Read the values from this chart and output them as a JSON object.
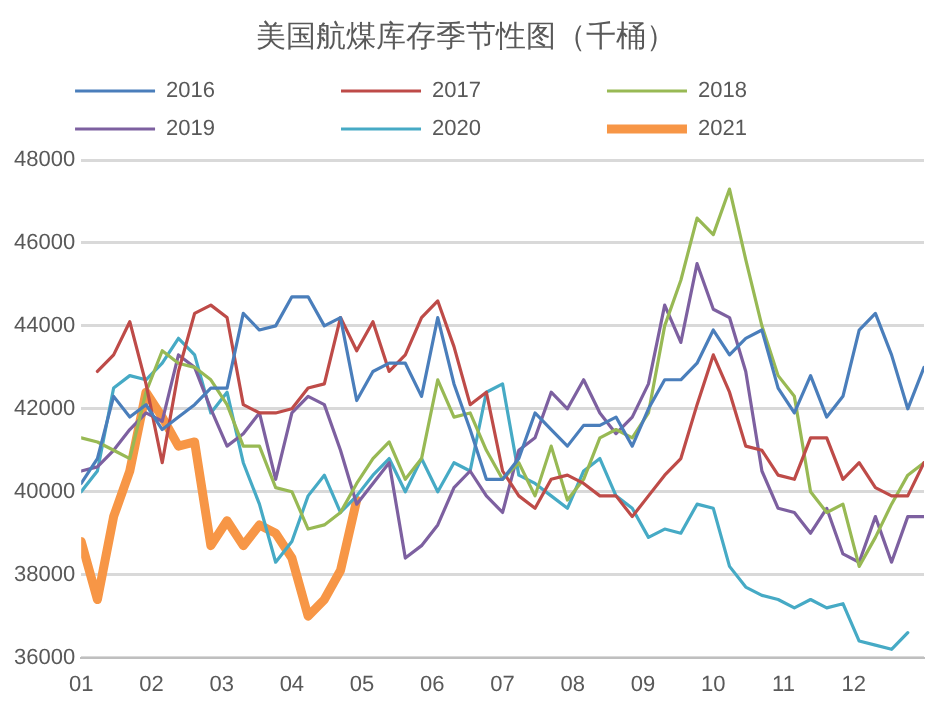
{
  "chart_data": {
    "type": "line",
    "title": "美国航煤库存季节性图（千桶）",
    "x": [
      1,
      1.231,
      1.462,
      1.692,
      1.923,
      2.154,
      2.385,
      2.615,
      2.846,
      3.077,
      3.308,
      3.538,
      3.769,
      4,
      4.231,
      4.462,
      4.692,
      4.923,
      5.154,
      5.385,
      5.615,
      5.846,
      6.077,
      6.308,
      6.538,
      6.769,
      7,
      7.231,
      7.462,
      7.692,
      7.923,
      8.154,
      8.385,
      8.615,
      8.846,
      9.077,
      9.308,
      9.538,
      9.769,
      10,
      10.231,
      10.462,
      10.692,
      10.923,
      11.154,
      11.385,
      11.615,
      11.846,
      12.077,
      12.308,
      12.538,
      12.769,
      13
    ],
    "xlim": [
      1,
      13
    ],
    "xticks": [
      {
        "value": 1,
        "label": "01"
      },
      {
        "value": 2,
        "label": "02"
      },
      {
        "value": 3,
        "label": "03"
      },
      {
        "value": 4,
        "label": "04"
      },
      {
        "value": 5,
        "label": "05"
      },
      {
        "value": 6,
        "label": "06"
      },
      {
        "value": 7,
        "label": "07"
      },
      {
        "value": 8,
        "label": "08"
      },
      {
        "value": 9,
        "label": "09"
      },
      {
        "value": 10,
        "label": "10"
      },
      {
        "value": 11,
        "label": "11"
      },
      {
        "value": 12,
        "label": "12"
      }
    ],
    "ylim": [
      36000,
      48000
    ],
    "yticks": [
      36000,
      38000,
      40000,
      42000,
      44000,
      46000,
      48000
    ],
    "grid": "y",
    "legend": "top",
    "marker": "none",
    "line_style": "solid",
    "series": [
      {
        "name": "2016",
        "color": "#4a7ebb",
        "values": [
          40200,
          40800,
          42300,
          41800,
          42100,
          41500,
          41800,
          42100,
          42500,
          42500,
          44300,
          43900,
          44000,
          44700,
          44700,
          44000,
          44200,
          42200,
          42900,
          43100,
          43100,
          42300,
          44200,
          42600,
          41500,
          40300,
          40300,
          40800,
          41900,
          41500,
          41100,
          41600,
          41600,
          41800,
          41100,
          42000,
          42700,
          42700,
          43100,
          43900,
          43300,
          43700,
          43900,
          42500,
          41900,
          42800,
          41800,
          42300,
          43900,
          44300,
          43300,
          42000,
          43000
        ]
      },
      {
        "name": "2017",
        "color": "#be4b48",
        "values": [
          null,
          42900,
          43300,
          44100,
          42600,
          40700,
          42900,
          44300,
          44500,
          44200,
          42100,
          41900,
          41900,
          42000,
          42500,
          42600,
          44200,
          43400,
          44100,
          42900,
          43300,
          44200,
          44600,
          43500,
          42100,
          42400,
          40500,
          39900,
          39600,
          40300,
          40400,
          40200,
          39900,
          39900,
          39400,
          39900,
          40400,
          40800,
          42100,
          43300,
          42400,
          41100,
          41000,
          40400,
          40300,
          41300,
          41300,
          40300,
          40700,
          40100,
          39900,
          39900,
          40700
        ]
      },
      {
        "name": "2018",
        "color": "#98b954",
        "values": [
          41300,
          41200,
          41000,
          40800,
          42400,
          43400,
          43100,
          43000,
          42700,
          42100,
          41100,
          41100,
          40100,
          40000,
          39100,
          39200,
          39500,
          40200,
          40800,
          41200,
          40300,
          40800,
          42700,
          41800,
          41900,
          41000,
          40300,
          40700,
          39900,
          41100,
          39800,
          40300,
          41300,
          41500,
          41300,
          41900,
          44000,
          45100,
          46600,
          46200,
          47300,
          45600,
          44000,
          42800,
          42300,
          40000,
          39500,
          39700,
          38200,
          38900,
          39700,
          40400,
          40700
        ]
      },
      {
        "name": "2019",
        "color": "#7d60a0",
        "values": [
          40500,
          40600,
          41000,
          41500,
          41900,
          41700,
          43300,
          43000,
          42000,
          41100,
          41400,
          41900,
          40300,
          41900,
          42300,
          42100,
          41000,
          39700,
          40200,
          40700,
          38400,
          38700,
          39200,
          40100,
          40500,
          39900,
          39500,
          41000,
          41300,
          42400,
          42000,
          42700,
          41900,
          41400,
          41800,
          42600,
          44500,
          43600,
          45500,
          44400,
          44200,
          42900,
          40500,
          39600,
          39500,
          39000,
          39600,
          38500,
          38300,
          39400,
          38300,
          39400,
          39400
        ]
      },
      {
        "name": "2020",
        "color": "#46aac5",
        "values": [
          40000,
          40500,
          42500,
          42800,
          42700,
          43100,
          43700,
          43300,
          41900,
          42400,
          40700,
          39700,
          38300,
          38800,
          39900,
          40400,
          39500,
          39900,
          40400,
          40800,
          40000,
          40800,
          40000,
          40700,
          40500,
          42400,
          42600,
          40400,
          40200,
          39900,
          39600,
          40500,
          40800,
          39900,
          39600,
          38900,
          39100,
          39000,
          39700,
          39600,
          38200,
          37700,
          37500,
          37400,
          37200,
          37400,
          37200,
          37300,
          36400,
          36300,
          36200,
          36600,
          null
        ]
      },
      {
        "name": "2021",
        "color": "#f79646",
        "values": [
          38800,
          37400,
          39400,
          40500,
          42400,
          41800,
          41100,
          41200,
          38700,
          39300,
          38700,
          39200,
          39000,
          38400,
          37000,
          37400,
          38100,
          39800,
          null,
          null,
          null,
          null,
          null,
          null,
          null,
          null,
          null,
          null,
          null,
          null,
          null,
          null,
          null,
          null,
          null,
          null,
          null,
          null,
          null,
          null,
          null,
          null,
          null,
          null,
          null,
          null,
          null,
          null,
          null,
          null,
          null,
          null,
          null
        ]
      }
    ]
  }
}
